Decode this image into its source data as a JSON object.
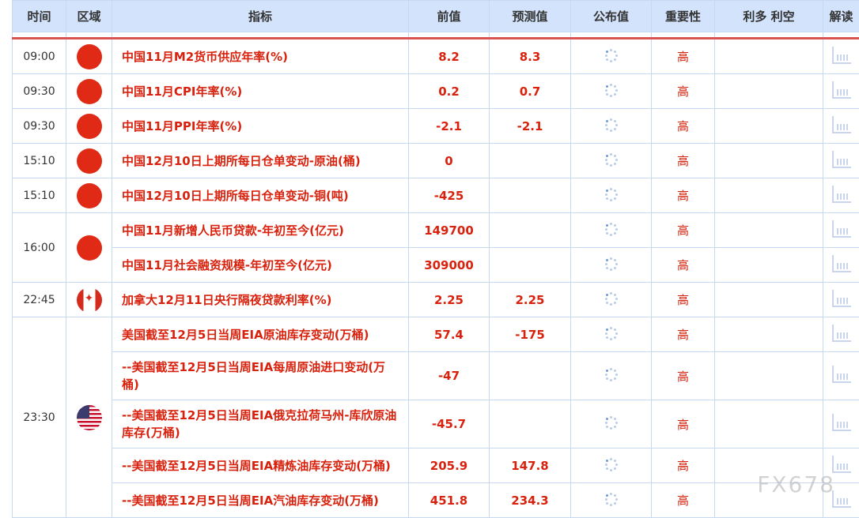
{
  "header": {
    "time": "时间",
    "region": "区域",
    "indicator": "指标",
    "previous": "前值",
    "forecast": "预测值",
    "actual": "公布值",
    "importance": "重要性",
    "impact": "利多 利空",
    "interpret": "解读"
  },
  "accent_color": "#d8220e",
  "groups": [
    {
      "time": "09:00",
      "flag": "cn",
      "items": [
        {
          "indicator": "中国11月M2货币供应年率(%)",
          "previous": "8.2",
          "forecast": "8.3",
          "importance": "高"
        }
      ]
    },
    {
      "time": "09:30",
      "flag": "cn",
      "items": [
        {
          "indicator": "中国11月CPI年率(%)",
          "previous": "0.2",
          "forecast": "0.7",
          "importance": "高"
        }
      ]
    },
    {
      "time": "09:30",
      "flag": "cn",
      "items": [
        {
          "indicator": "中国11月PPI年率(%)",
          "previous": "-2.1",
          "forecast": "-2.1",
          "importance": "高"
        }
      ]
    },
    {
      "time": "15:10",
      "flag": "cn",
      "items": [
        {
          "indicator": "中国12月10日上期所每日仓单变动-原油(桶)",
          "previous": "0",
          "forecast": "",
          "importance": "高"
        }
      ]
    },
    {
      "time": "15:10",
      "flag": "cn",
      "items": [
        {
          "indicator": "中国12月10日上期所每日仓单变动-铜(吨)",
          "previous": "-425",
          "forecast": "",
          "importance": "高"
        }
      ]
    },
    {
      "time": "16:00",
      "flag": "cn",
      "items": [
        {
          "indicator": "中国11月新增人民币贷款-年初至今(亿元)",
          "previous": "149700",
          "forecast": "",
          "importance": "高"
        },
        {
          "indicator": "中国11月社会融资规模-年初至今(亿元)",
          "previous": "309000",
          "forecast": "",
          "importance": "高"
        }
      ]
    },
    {
      "time": "22:45",
      "flag": "ca",
      "items": [
        {
          "indicator": "加拿大12月11日央行隔夜贷款利率(%)",
          "previous": "2.25",
          "forecast": "2.25",
          "importance": "高"
        }
      ]
    },
    {
      "time": "23:30",
      "flag": "us",
      "items": [
        {
          "indicator": "美国截至12月5日当周EIA原油库存变动(万桶)",
          "previous": "57.4",
          "forecast": "-175",
          "importance": "高"
        },
        {
          "indicator": "--美国截至12月5日当周EIA每周原油进口变动(万桶)",
          "previous": "-47",
          "forecast": "",
          "importance": "高",
          "tall": true
        },
        {
          "indicator": "--美国截至12月5日当周EIA俄克拉荷马州-库欣原油库存(万桶)",
          "previous": "-45.7",
          "forecast": "",
          "importance": "高",
          "tall": true
        },
        {
          "indicator": "--美国截至12月5日当周EIA精炼油库存变动(万桶)",
          "previous": "205.9",
          "forecast": "147.8",
          "importance": "高"
        },
        {
          "indicator": "--美国截至12月5日当周EIA汽油库存变动(万桶)",
          "previous": "451.8",
          "forecast": "234.3",
          "importance": "高"
        }
      ]
    }
  ],
  "watermark": "FX678"
}
